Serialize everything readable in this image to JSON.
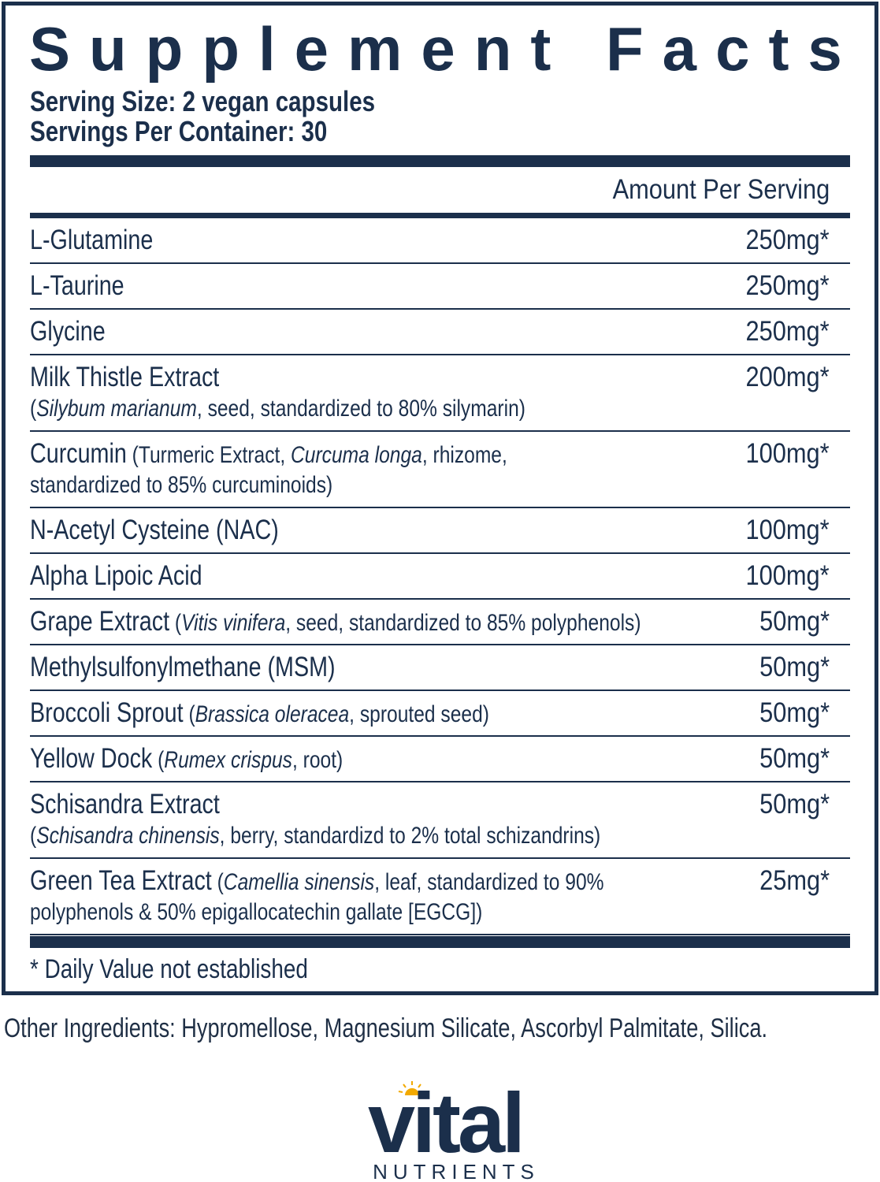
{
  "panel": {
    "title": "Supplement Facts",
    "serving_size": "Serving Size: 2 vegan capsules",
    "servings_per_container": "Servings Per Container: 30",
    "amount_header": "Amount Per Serving",
    "rows": [
      {
        "lines": [
          [
            {
              "text": "L-Glutamine",
              "style": "name"
            }
          ]
        ],
        "amount": "250mg*"
      },
      {
        "lines": [
          [
            {
              "text": "L-Taurine",
              "style": "name"
            }
          ]
        ],
        "amount": "250mg*"
      },
      {
        "lines": [
          [
            {
              "text": "Glycine",
              "style": "name"
            }
          ]
        ],
        "amount": "250mg*"
      },
      {
        "lines": [
          [
            {
              "text": "Milk Thistle Extract",
              "style": "name"
            }
          ],
          [
            {
              "text": "(",
              "style": "detail"
            },
            {
              "text": "Silybum marianum",
              "style": "italic"
            },
            {
              "text": ", seed, standardized to 80% silymarin)",
              "style": "detail"
            }
          ]
        ],
        "amount": "200mg*"
      },
      {
        "lines": [
          [
            {
              "text": "Curcumin",
              "style": "name"
            },
            {
              "text": " (Turmeric Extract, ",
              "style": "detail"
            },
            {
              "text": "Curcuma longa",
              "style": "italic"
            },
            {
              "text": ", rhizome,",
              "style": "detail"
            }
          ],
          [
            {
              "text": "standardized to 85% curcuminoids)",
              "style": "detail"
            }
          ]
        ],
        "amount": "100mg*"
      },
      {
        "lines": [
          [
            {
              "text": "N-Acetyl Cysteine (NAC)",
              "style": "name"
            }
          ]
        ],
        "amount": "100mg*"
      },
      {
        "lines": [
          [
            {
              "text": "Alpha Lipoic Acid",
              "style": "name"
            }
          ]
        ],
        "amount": "100mg*"
      },
      {
        "lines": [
          [
            {
              "text": "Grape Extract",
              "style": "name"
            },
            {
              "text": " (",
              "style": "detail"
            },
            {
              "text": "Vitis vinifera",
              "style": "italic"
            },
            {
              "text": ", seed, standardized to 85% polyphenols)",
              "style": "detail"
            }
          ]
        ],
        "amount": "50mg*"
      },
      {
        "lines": [
          [
            {
              "text": "Methylsulfonylmethane (MSM)",
              "style": "name"
            }
          ]
        ],
        "amount": "50mg*"
      },
      {
        "lines": [
          [
            {
              "text": "Broccoli Sprout",
              "style": "name"
            },
            {
              "text": " (",
              "style": "detail"
            },
            {
              "text": "Brassica oleracea",
              "style": "italic"
            },
            {
              "text": ", sprouted seed)",
              "style": "detail"
            }
          ]
        ],
        "amount": "50mg*"
      },
      {
        "lines": [
          [
            {
              "text": "Yellow Dock",
              "style": "name"
            },
            {
              "text": " (",
              "style": "detail"
            },
            {
              "text": "Rumex crispus",
              "style": "italic"
            },
            {
              "text": ", root)",
              "style": "detail"
            }
          ]
        ],
        "amount": "50mg*"
      },
      {
        "lines": [
          [
            {
              "text": "Schisandra Extract",
              "style": "name"
            }
          ],
          [
            {
              "text": "(",
              "style": "detail"
            },
            {
              "text": "Schisandra chinensis",
              "style": "italic"
            },
            {
              "text": ", berry, standardizd to 2% total schizandrins)",
              "style": "detail"
            }
          ]
        ],
        "amount": "50mg*"
      },
      {
        "lines": [
          [
            {
              "text": "Green Tea Extract",
              "style": "name"
            },
            {
              "text": " (",
              "style": "detail"
            },
            {
              "text": "Camellia sinensis",
              "style": "italic"
            },
            {
              "text": ", leaf, standardized to 90%",
              "style": "detail"
            }
          ],
          [
            {
              "text": "polyphenols & 50% epigallocatechin gallate [EGCG])",
              "style": "detail"
            }
          ]
        ],
        "amount": "25mg*"
      }
    ],
    "footnote": "* Daily Value not established"
  },
  "other_ingredients": "Other Ingredients: Hypromellose, Magnesium Silicate, Ascorbyl Palmitate, Silica.",
  "brand": {
    "name": "vital",
    "tagline": "NUTRIENTS"
  }
}
